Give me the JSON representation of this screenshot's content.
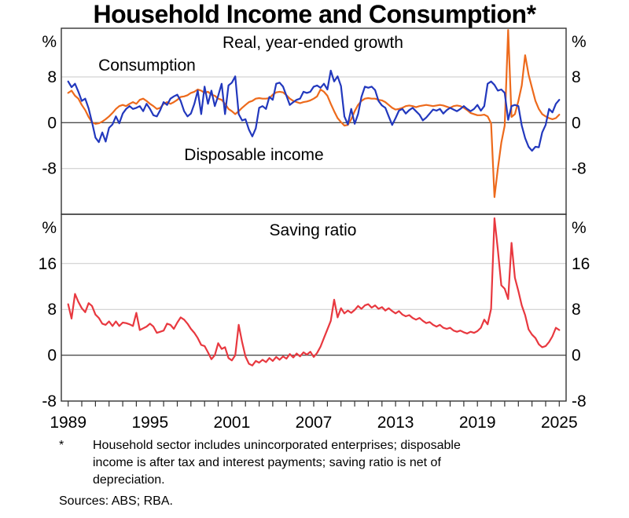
{
  "title": "Household Income and Consumption*",
  "x_axis": {
    "range": [
      1988.5,
      2025.5
    ],
    "tick_interval_years": 1,
    "labels": [
      1989,
      1995,
      2001,
      2007,
      2013,
      2019,
      2025
    ]
  },
  "footnote": {
    "marker": "*",
    "lines": [
      "Household sector includes unincorporated enterprises; disposable",
      "income is after tax and interest payments; saving ratio is net of",
      "depreciation."
    ],
    "sources": "Sources: ABS; RBA."
  },
  "colors": {
    "consumption": "#ED6A1C",
    "disposable_income": "#2238BD",
    "saving_ratio": "#E8383F",
    "grid": "#C9C9C9",
    "zero_line": "#4D4D4D",
    "axis": "#333333"
  },
  "chart_data": [
    {
      "type": "line",
      "title": "Real, year-ended growth",
      "unit": "%",
      "x_start": 1989,
      "x_step": 0.25,
      "ylim": [
        -16,
        16.5
      ],
      "yticks": [
        8,
        0,
        -8
      ],
      "grid": true,
      "legend_position": "inline-labels",
      "series": [
        {
          "name": "Consumption",
          "color": "#ED6A1C",
          "values": [
            5.2,
            5.6,
            4.7,
            4.2,
            3.1,
            2.2,
            1.0,
            0.1,
            -0.2,
            -0.1,
            0.2,
            0.6,
            1.1,
            1.7,
            2.4,
            2.9,
            3.1,
            2.9,
            3.3,
            3.6,
            3.3,
            4.0,
            4.2,
            3.8,
            3.3,
            2.9,
            2.4,
            2.6,
            3.3,
            3.6,
            3.3,
            3.6,
            4.0,
            4.5,
            4.6,
            4.8,
            5.2,
            5.4,
            5.8,
            5.6,
            5.2,
            5.4,
            4.9,
            4.7,
            4.2,
            4.0,
            3.3,
            2.4,
            2.0,
            1.5,
            2.0,
            2.6,
            3.1,
            3.6,
            3.8,
            4.2,
            4.3,
            4.2,
            4.2,
            4.3,
            4.9,
            5.3,
            5.4,
            5.3,
            4.8,
            4.2,
            3.8,
            3.6,
            3.4,
            3.6,
            3.7,
            3.9,
            4.2,
            4.6,
            5.8,
            5.4,
            4.7,
            3.3,
            2.0,
            0.8,
            0.1,
            -0.5,
            -0.4,
            0.6,
            2.0,
            3.1,
            3.8,
            4.2,
            4.3,
            4.2,
            4.2,
            4.0,
            3.9,
            3.6,
            3.1,
            2.6,
            2.3,
            2.4,
            2.6,
            2.9,
            3.0,
            2.9,
            2.7,
            2.9,
            3.0,
            3.1,
            3.0,
            2.9,
            3.0,
            3.1,
            3.0,
            2.8,
            2.6,
            2.9,
            3.0,
            2.9,
            2.6,
            2.2,
            1.7,
            1.5,
            1.3,
            1.3,
            1.4,
            1.1,
            -0.1,
            -13.0,
            -8.0,
            -3.5,
            -0.5,
            16.2,
            1.0,
            1.5,
            3.8,
            6.5,
            11.8,
            8.4,
            6.1,
            3.8,
            2.4,
            1.5,
            1.1,
            0.8,
            0.6,
            0.8,
            1.4
          ]
        },
        {
          "name": "Disposable income",
          "color": "#2238BD",
          "values": [
            7.2,
            6.2,
            6.8,
            5.4,
            3.8,
            4.2,
            2.5,
            0.1,
            -2.6,
            -3.4,
            -1.7,
            -3.3,
            -0.9,
            -0.3,
            1.1,
            -0.1,
            1.6,
            2.4,
            2.9,
            2.4,
            2.6,
            2.9,
            2.0,
            3.3,
            2.4,
            1.3,
            1.1,
            2.2,
            3.6,
            3.1,
            4.2,
            4.6,
            4.9,
            3.8,
            2.0,
            1.1,
            1.6,
            3.3,
            5.6,
            1.5,
            6.3,
            3.3,
            5.6,
            2.9,
            4.7,
            6.8,
            1.5,
            6.5,
            7.0,
            8.1,
            1.5,
            0.4,
            0.6,
            -1.2,
            -2.4,
            -1.0,
            2.6,
            2.9,
            2.4,
            4.5,
            4.0,
            6.8,
            7.0,
            6.3,
            4.7,
            3.1,
            3.6,
            4.0,
            4.2,
            5.4,
            5.2,
            5.4,
            6.3,
            6.5,
            6.1,
            6.8,
            5.8,
            9.1,
            7.2,
            8.1,
            6.4,
            1.1,
            -0.3,
            2.4,
            -0.2,
            1.5,
            4.5,
            6.3,
            6.1,
            6.3,
            5.7,
            3.8,
            3.0,
            2.6,
            1.1,
            -0.4,
            0.8,
            2.1,
            2.4,
            1.6,
            2.2,
            2.6,
            2.0,
            1.4,
            0.4,
            0.9,
            1.6,
            2.3,
            2.1,
            2.4,
            1.6,
            2.2,
            2.6,
            2.3,
            2.0,
            2.4,
            2.9,
            2.4,
            2.0,
            2.4,
            3.1,
            2.1,
            2.9,
            6.8,
            7.2,
            6.6,
            5.6,
            5.8,
            5.2,
            0.5,
            2.9,
            3.1,
            2.9,
            -0.5,
            -2.7,
            -4.2,
            -4.9,
            -4.2,
            -4.3,
            -1.7,
            -0.4,
            2.4,
            1.8,
            3.3,
            4.0
          ]
        }
      ]
    },
    {
      "type": "line",
      "title": "Saving ratio",
      "unit": "%",
      "x_start": 1989,
      "x_step": 0.25,
      "ylim": [
        -8,
        24.6
      ],
      "yticks": [
        16,
        8,
        0,
        -8
      ],
      "grid": true,
      "series": [
        {
          "name": "Saving ratio",
          "color": "#E8383F",
          "values": [
            8.9,
            6.4,
            10.7,
            9.3,
            8.2,
            7.5,
            9.1,
            8.6,
            7.1,
            6.5,
            5.5,
            5.3,
            5.9,
            5.1,
            5.9,
            5.1,
            5.7,
            5.6,
            5.4,
            5.1,
            7.4,
            4.4,
            4.7,
            5.0,
            5.5,
            5.0,
            3.9,
            4.1,
            4.3,
            5.5,
            5.3,
            4.6,
            5.7,
            6.6,
            6.2,
            5.5,
            4.6,
            3.9,
            3.0,
            1.8,
            1.6,
            0.5,
            -0.7,
            0.0,
            2.1,
            1.1,
            1.4,
            -0.5,
            -0.9,
            0.0,
            5.3,
            2.3,
            -0.2,
            -1.5,
            -1.8,
            -1.0,
            -1.3,
            -0.8,
            -1.2,
            -0.5,
            -1.0,
            -0.3,
            -0.8,
            -0.2,
            -0.6,
            0.2,
            -0.4,
            0.3,
            -0.2,
            0.5,
            0.1,
            0.6,
            -0.3,
            0.4,
            1.5,
            3.0,
            4.5,
            6.0,
            9.7,
            6.6,
            8.2,
            7.3,
            7.8,
            7.4,
            7.9,
            8.6,
            8.1,
            8.7,
            8.9,
            8.3,
            8.7,
            8.1,
            8.4,
            7.8,
            8.2,
            7.7,
            7.3,
            7.7,
            7.1,
            6.8,
            7.0,
            6.5,
            6.2,
            6.5,
            6.0,
            5.6,
            5.8,
            5.3,
            5.0,
            5.3,
            4.8,
            4.6,
            4.8,
            4.3,
            4.1,
            4.3,
            4.0,
            3.8,
            4.1,
            3.9,
            4.2,
            4.8,
            6.2,
            5.4,
            8.1,
            23.9,
            18.4,
            12.2,
            11.6,
            9.8,
            19.6,
            13.5,
            11.2,
            8.7,
            7.0,
            4.5,
            3.6,
            3.0,
            1.9,
            1.4,
            1.6,
            2.3,
            3.3,
            4.8,
            4.4
          ]
        }
      ]
    }
  ]
}
